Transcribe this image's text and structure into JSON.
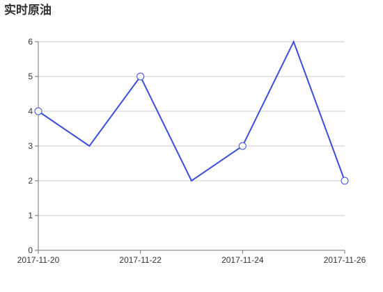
{
  "chart_data": {
    "type": "line",
    "title": "实时原油",
    "x": [
      "2017-11-20",
      "2017-11-21",
      "2017-11-22",
      "2017-11-23",
      "2017-11-24",
      "2017-11-25",
      "2017-11-26"
    ],
    "x_tick_labels": [
      "2017-11-20",
      "2017-11-22",
      "2017-11-24",
      "2017-11-26"
    ],
    "y_ticks": [
      0,
      1,
      2,
      3,
      4,
      5,
      6
    ],
    "ylim": [
      0,
      6
    ],
    "grid": true,
    "series": [
      {
        "values": [
          4,
          3,
          5,
          2,
          3,
          6,
          2
        ],
        "color": "#3a4de0",
        "marker_indices": [
          0,
          2,
          4,
          6
        ]
      }
    ],
    "xlabel": "",
    "ylabel": ""
  }
}
